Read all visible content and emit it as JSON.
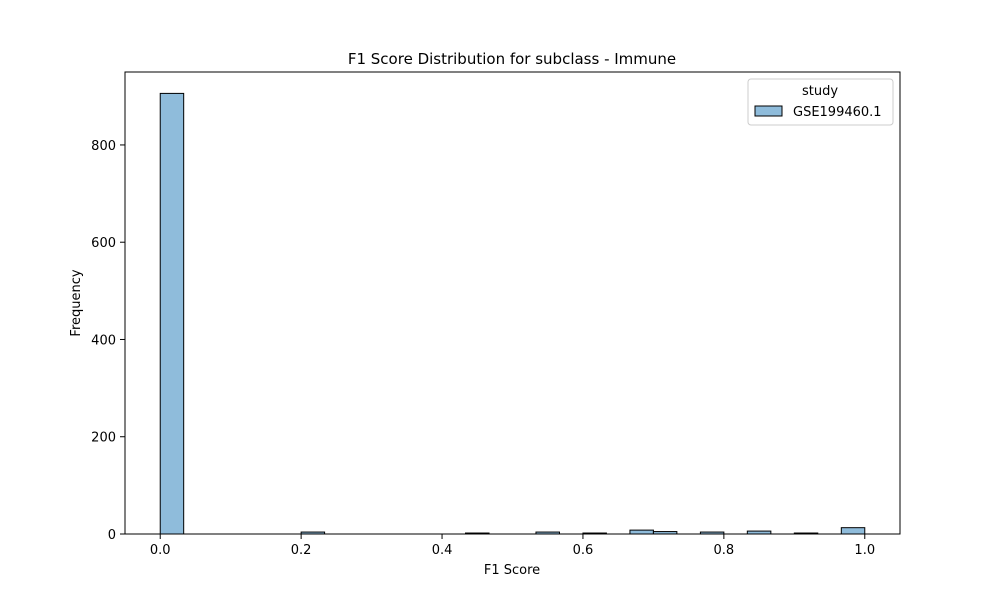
{
  "chart_data": {
    "type": "bar",
    "title": "F1 Score Distribution for subclass - Immune",
    "xlabel": "F1 Score",
    "ylabel": "Frequency",
    "xlim": [
      -0.05,
      1.05
    ],
    "ylim": [
      0,
      950
    ],
    "x_ticks": [
      0.0,
      0.2,
      0.4,
      0.6,
      0.8,
      1.0
    ],
    "x_tick_labels": [
      "0.0",
      "0.2",
      "0.4",
      "0.6",
      "0.8",
      "1.0"
    ],
    "y_ticks": [
      0,
      200,
      400,
      600,
      800
    ],
    "y_tick_labels": [
      "0",
      "200",
      "400",
      "600",
      "800"
    ],
    "grid": false,
    "legend": {
      "title": "study",
      "position": "top-right"
    },
    "series": [
      {
        "name": "GSE199460.1",
        "color": "#8fbcdb",
        "edge_color": "#000000",
        "bins": [
          {
            "x0": 0.0,
            "x1": 0.0333,
            "value": 906
          },
          {
            "x0": 0.2,
            "x1": 0.2333,
            "value": 4
          },
          {
            "x0": 0.4333,
            "x1": 0.4667,
            "value": 2
          },
          {
            "x0": 0.5333,
            "x1": 0.5667,
            "value": 4
          },
          {
            "x0": 0.6,
            "x1": 0.6333,
            "value": 2
          },
          {
            "x0": 0.6667,
            "x1": 0.7,
            "value": 8
          },
          {
            "x0": 0.7,
            "x1": 0.7333,
            "value": 5
          },
          {
            "x0": 0.7667,
            "x1": 0.8,
            "value": 4
          },
          {
            "x0": 0.8333,
            "x1": 0.8667,
            "value": 6
          },
          {
            "x0": 0.9,
            "x1": 0.9333,
            "value": 2
          },
          {
            "x0": 0.9667,
            "x1": 1.0,
            "value": 13
          }
        ]
      }
    ]
  }
}
